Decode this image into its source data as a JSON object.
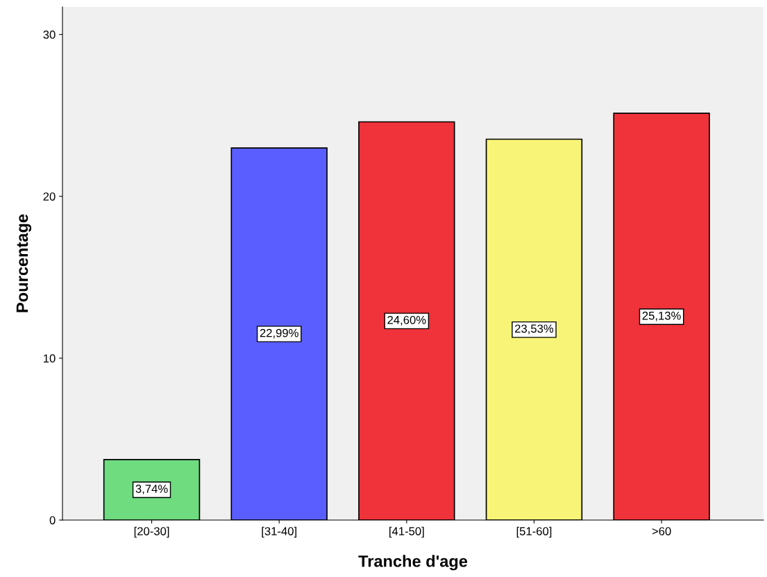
{
  "chart_data": {
    "type": "bar",
    "xlabel": "Tranche d'age",
    "ylabel": "Pourcentage",
    "categories": [
      "[20-30]",
      "[31-40]",
      "[41-50]",
      "[51-60]",
      ">60"
    ],
    "values": [
      3.74,
      22.99,
      24.6,
      23.53,
      25.13
    ],
    "colors": [
      "#6fdc80",
      "#5a5eff",
      "#f0323a",
      "#f8f478",
      "#f0323a"
    ],
    "value_labels": [
      "3,74%",
      "22,99%",
      "24,60%",
      "23,53%",
      "25,13%"
    ],
    "ylim": [
      0,
      31.7
    ],
    "yticks": [
      0,
      10,
      20,
      30
    ],
    "grid": false
  }
}
